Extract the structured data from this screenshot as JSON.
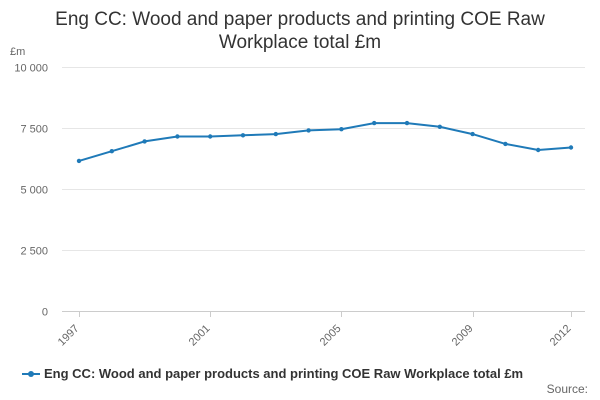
{
  "title_lines": [
    "Eng CC: Wood and paper products and printing COE Raw",
    "Workplace total £m"
  ],
  "unit_label": "£m",
  "source_label": "Source:",
  "colors": {
    "series": "#1f7ab8"
  },
  "chart_data": {
    "type": "line",
    "title": "Eng CC: Wood and paper products and printing COE Raw Workplace total £m",
    "xlabel": "",
    "ylabel": "£m",
    "x": [
      1997,
      1998,
      1999,
      2000,
      2001,
      2002,
      2003,
      2004,
      2005,
      2006,
      2007,
      2008,
      2009,
      2010,
      2011,
      2012
    ],
    "x_tick_labels": [
      "1997",
      "2001",
      "2005",
      "2009",
      "2012"
    ],
    "y_tick_labels": [
      "0",
      "2 500",
      "5 000",
      "7 500",
      "10 000"
    ],
    "y_ticks": [
      0,
      2500,
      5000,
      7500,
      10000
    ],
    "ylim": [
      0,
      10000
    ],
    "grid": true,
    "legend": "bottom",
    "series": [
      {
        "name": "Eng CC: Wood and paper products and printing COE Raw Workplace total £m",
        "values": [
          6150,
          6550,
          6950,
          7150,
          7150,
          7200,
          7250,
          7400,
          7450,
          7700,
          7700,
          7550,
          7250,
          6850,
          6600,
          6700
        ]
      }
    ]
  }
}
